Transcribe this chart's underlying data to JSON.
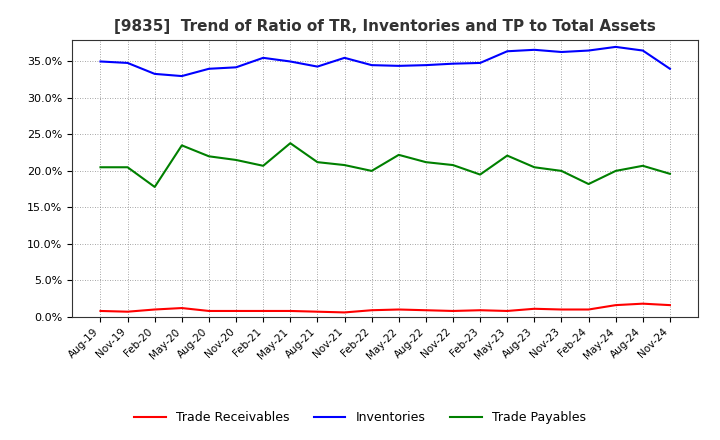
{
  "title": "[9835]  Trend of Ratio of TR, Inventories and TP to Total Assets",
  "labels": [
    "Aug-19",
    "Nov-19",
    "Feb-20",
    "May-20",
    "Aug-20",
    "Nov-20",
    "Feb-21",
    "May-21",
    "Aug-21",
    "Nov-21",
    "Feb-22",
    "May-22",
    "Aug-22",
    "Nov-22",
    "Feb-23",
    "May-23",
    "Aug-23",
    "Nov-23",
    "Feb-24",
    "May-24",
    "Aug-24",
    "Nov-24"
  ],
  "trade_receivables": [
    0.008,
    0.007,
    0.01,
    0.012,
    0.008,
    0.008,
    0.008,
    0.008,
    0.007,
    0.006,
    0.009,
    0.01,
    0.009,
    0.008,
    0.009,
    0.008,
    0.011,
    0.01,
    0.01,
    0.016,
    0.018,
    0.016
  ],
  "inventories": [
    0.35,
    0.348,
    0.333,
    0.33,
    0.34,
    0.342,
    0.355,
    0.35,
    0.343,
    0.355,
    0.345,
    0.344,
    0.345,
    0.347,
    0.348,
    0.364,
    0.366,
    0.363,
    0.365,
    0.37,
    0.365,
    0.34
  ],
  "trade_payables": [
    0.205,
    0.205,
    0.178,
    0.235,
    0.22,
    0.215,
    0.207,
    0.238,
    0.212,
    0.208,
    0.2,
    0.222,
    0.212,
    0.208,
    0.195,
    0.221,
    0.205,
    0.2,
    0.182,
    0.2,
    0.207,
    0.196
  ],
  "tr_color": "#FF0000",
  "inv_color": "#0000FF",
  "tp_color": "#008000",
  "ylim": [
    0.0,
    0.38
  ],
  "yticks": [
    0.0,
    0.05,
    0.1,
    0.15,
    0.2,
    0.25,
    0.3,
    0.35
  ],
  "bg_color": "#FFFFFF",
  "plot_bg_color": "#FFFFFF",
  "grid_color": "#888888",
  "title_color": "#333333",
  "legend_labels": [
    "Trade Receivables",
    "Inventories",
    "Trade Payables"
  ]
}
